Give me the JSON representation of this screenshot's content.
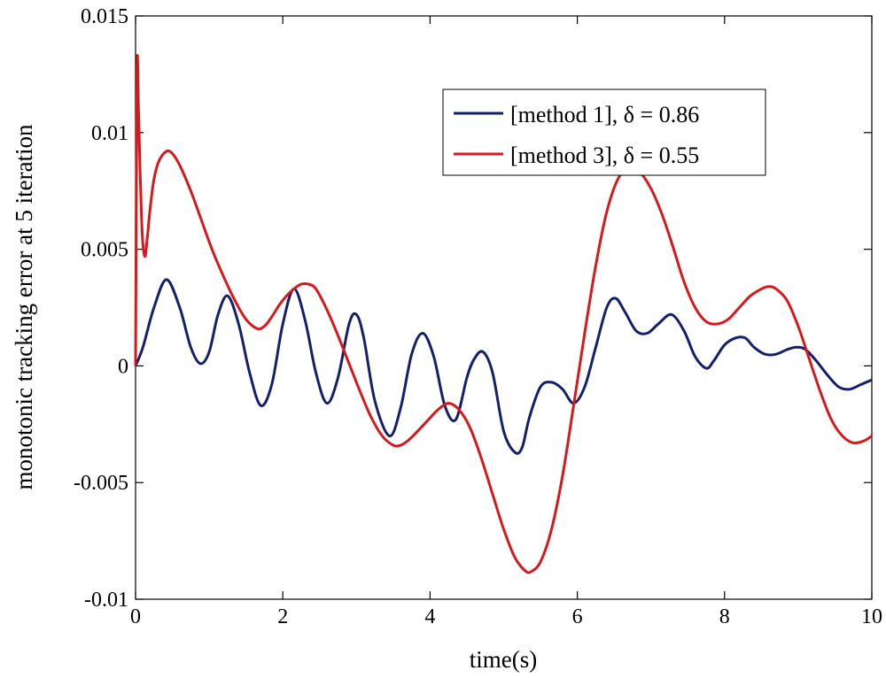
{
  "chart_data": {
    "type": "line",
    "title": "",
    "xlabel": "time(s)",
    "ylabel": "monotonic tracking error at 5 iteration",
    "xlim": [
      0,
      10
    ],
    "ylim": [
      -0.01,
      0.015
    ],
    "xticks": [
      0,
      2,
      4,
      6,
      8,
      10
    ],
    "xtick_labels": [
      "0",
      "2",
      "4",
      "6",
      "8",
      "10"
    ],
    "yticks": [
      -0.01,
      -0.005,
      0,
      0.005,
      0.01,
      0.015
    ],
    "ytick_labels": [
      "-0.01",
      "-0.005",
      "0",
      "0.005",
      "0.01",
      "0.015"
    ],
    "grid": false,
    "legend_position": "top-right",
    "series": [
      {
        "name": "[method 1],  δ = 0.86",
        "color": "#14206b",
        "x": [
          0,
          0.1,
          0.25,
          0.42,
          0.6,
          0.75,
          0.88,
          1.0,
          1.12,
          1.25,
          1.4,
          1.55,
          1.7,
          1.85,
          2.0,
          2.15,
          2.3,
          2.45,
          2.6,
          2.75,
          2.9,
          3.0,
          3.1,
          3.25,
          3.45,
          3.6,
          3.75,
          3.9,
          4.05,
          4.2,
          4.35,
          4.5,
          4.6,
          4.72,
          4.85,
          5.0,
          5.15,
          5.25,
          5.35,
          5.5,
          5.65,
          5.8,
          5.95,
          6.1,
          6.25,
          6.4,
          6.52,
          6.65,
          6.8,
          6.95,
          7.1,
          7.28,
          7.45,
          7.6,
          7.75,
          7.85,
          8.0,
          8.15,
          8.28,
          8.4,
          8.55,
          8.7,
          8.85,
          8.98,
          9.1,
          9.25,
          9.4,
          9.55,
          9.7,
          9.85,
          10.0
        ],
        "y": [
          0,
          0.0008,
          0.0025,
          0.0037,
          0.0025,
          0.0008,
          0.0001,
          0.0006,
          0.0022,
          0.003,
          0.0018,
          -0.0003,
          -0.0017,
          -0.0008,
          0.0018,
          0.0033,
          0.002,
          -0.0003,
          -0.0016,
          -0.0005,
          0.0018,
          0.0022,
          0.0012,
          -0.0015,
          -0.003,
          -0.0018,
          0.0005,
          0.0014,
          0.0004,
          -0.0017,
          -0.0023,
          -0.0005,
          0.0003,
          0.0006,
          -0.0003,
          -0.0028,
          -0.0037,
          -0.0035,
          -0.0022,
          -0.0009,
          -0.0007,
          -0.001,
          -0.0016,
          -0.0009,
          0.0008,
          0.0025,
          0.0029,
          0.0023,
          0.0015,
          0.0014,
          0.0018,
          0.0022,
          0.0015,
          0.0004,
          -0.0001,
          0.0002,
          0.0009,
          0.0012,
          0.0012,
          0.0008,
          0.0005,
          0.0005,
          0.0007,
          0.0008,
          0.0007,
          0.0002,
          -0.0004,
          -0.0009,
          -0.001,
          -0.0008,
          -0.0006
        ]
      },
      {
        "name": "[method 3],  δ = 0.55",
        "color": "#d7191c",
        "x": [
          0,
          0.02,
          0.04,
          0.06,
          0.08,
          0.1,
          0.13,
          0.16,
          0.2,
          0.25,
          0.32,
          0.42,
          0.5,
          0.6,
          0.75,
          0.9,
          1.05,
          1.2,
          1.35,
          1.5,
          1.65,
          1.75,
          1.85,
          1.95,
          2.05,
          2.15,
          2.25,
          2.35,
          2.45,
          2.6,
          2.75,
          2.9,
          3.05,
          3.2,
          3.35,
          3.5,
          3.6,
          3.7,
          3.8,
          3.95,
          4.1,
          4.25,
          4.4,
          4.55,
          4.7,
          4.85,
          5.0,
          5.15,
          5.3,
          5.38,
          5.5,
          5.65,
          5.8,
          5.95,
          6.1,
          6.25,
          6.4,
          6.55,
          6.7,
          6.85,
          7.0,
          7.15,
          7.3,
          7.45,
          7.6,
          7.75,
          7.9,
          8.05,
          8.2,
          8.35,
          8.5,
          8.6,
          8.7,
          8.85,
          9.0,
          9.15,
          9.3,
          9.45,
          9.6,
          9.75,
          9.9,
          10.0
        ],
        "y": [
          0,
          0.0127,
          0.011,
          0.0085,
          0.0065,
          0.0052,
          0.0047,
          0.0055,
          0.0068,
          0.008,
          0.0088,
          0.0092,
          0.0091,
          0.0086,
          0.0075,
          0.0062,
          0.0049,
          0.0038,
          0.0028,
          0.002,
          0.0016,
          0.0017,
          0.0021,
          0.0026,
          0.003,
          0.0033,
          0.0035,
          0.0035,
          0.0033,
          0.0024,
          0.0013,
          0.0001,
          -0.0011,
          -0.0022,
          -0.003,
          -0.0034,
          -0.0034,
          -0.0032,
          -0.0029,
          -0.0024,
          -0.0019,
          -0.0016,
          -0.0019,
          -0.0027,
          -0.004,
          -0.0055,
          -0.007,
          -0.0082,
          -0.0088,
          -0.0088,
          -0.0084,
          -0.007,
          -0.0047,
          -0.0017,
          0.0014,
          0.0043,
          0.0066,
          0.008,
          0.0085,
          0.0083,
          0.0076,
          0.0065,
          0.0051,
          0.0036,
          0.0025,
          0.0019,
          0.0018,
          0.002,
          0.0025,
          0.003,
          0.0033,
          0.0034,
          0.0033,
          0.0028,
          0.0017,
          0.0003,
          -0.0011,
          -0.0023,
          -0.003,
          -0.0033,
          -0.0032,
          -0.003
        ]
      }
    ]
  }
}
